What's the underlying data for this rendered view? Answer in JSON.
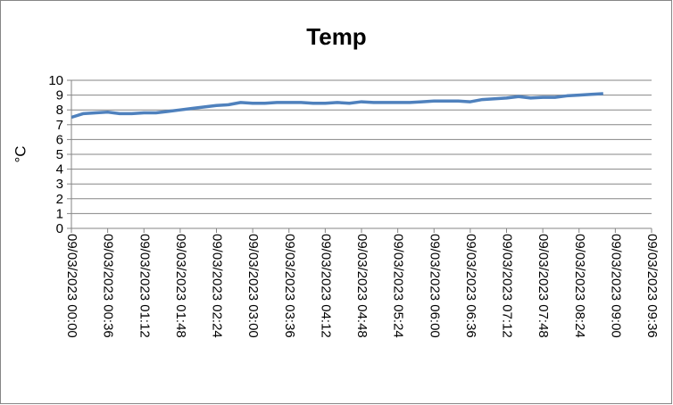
{
  "chart_data": {
    "type": "line",
    "title": "Temp",
    "y_label": "°C",
    "x": [
      "09/03/2023 00:00",
      "09/03/2023 00:12",
      "09/03/2023 00:24",
      "09/03/2023 00:36",
      "09/03/2023 00:48",
      "09/03/2023 01:00",
      "09/03/2023 01:12",
      "09/03/2023 01:24",
      "09/03/2023 01:36",
      "09/03/2023 01:48",
      "09/03/2023 02:00",
      "09/03/2023 02:12",
      "09/03/2023 02:24",
      "09/03/2023 02:36",
      "09/03/2023 02:48",
      "09/03/2023 03:00",
      "09/03/2023 03:12",
      "09/03/2023 03:24",
      "09/03/2023 03:36",
      "09/03/2023 03:48",
      "09/03/2023 04:00",
      "09/03/2023 04:12",
      "09/03/2023 04:24",
      "09/03/2023 04:36",
      "09/03/2023 04:48",
      "09/03/2023 05:00",
      "09/03/2023 05:12",
      "09/03/2023 05:24",
      "09/03/2023 05:36",
      "09/03/2023 05:48",
      "09/03/2023 06:00",
      "09/03/2023 06:12",
      "09/03/2023 06:24",
      "09/03/2023 06:36",
      "09/03/2023 06:48",
      "09/03/2023 07:00",
      "09/03/2023 07:12",
      "09/03/2023 07:24",
      "09/03/2023 07:36",
      "09/03/2023 07:48",
      "09/03/2023 08:00",
      "09/03/2023 08:12",
      "09/03/2023 08:24",
      "09/03/2023 08:36",
      "09/03/2023 08:48"
    ],
    "series": [
      {
        "color": "#4f81bd",
        "values": [
          7.5,
          7.75,
          7.8,
          7.85,
          7.75,
          7.75,
          7.8,
          7.8,
          7.9,
          8.0,
          8.1,
          8.2,
          8.3,
          8.35,
          8.5,
          8.45,
          8.45,
          8.5,
          8.5,
          8.5,
          8.45,
          8.45,
          8.5,
          8.45,
          8.55,
          8.5,
          8.5,
          8.5,
          8.5,
          8.55,
          8.6,
          8.6,
          8.6,
          8.55,
          8.7,
          8.75,
          8.8,
          8.9,
          8.8,
          8.85,
          8.85,
          8.95,
          9.0,
          9.05,
          9.1
        ]
      }
    ],
    "xlim": [
      "09/03/2023 00:00",
      "09/03/2023 09:36"
    ],
    "xticks": [
      "09/03/2023 00:00",
      "09/03/2023 00:36",
      "09/03/2023 01:12",
      "09/03/2023 01:48",
      "09/03/2023 02:24",
      "09/03/2023 03:00",
      "09/03/2023 03:36",
      "09/03/2023 04:12",
      "09/03/2023 04:48",
      "09/03/2023 05:24",
      "09/03/2023 06:00",
      "09/03/2023 06:36",
      "09/03/2023 07:12",
      "09/03/2023 07:48",
      "09/03/2023 08:24",
      "09/03/2023 09:00",
      "09/03/2023 09:36"
    ],
    "ylim": [
      0,
      10
    ],
    "yticks": [
      0,
      1,
      2,
      3,
      4,
      5,
      6,
      7,
      8,
      9,
      10
    ],
    "grid": true
  }
}
